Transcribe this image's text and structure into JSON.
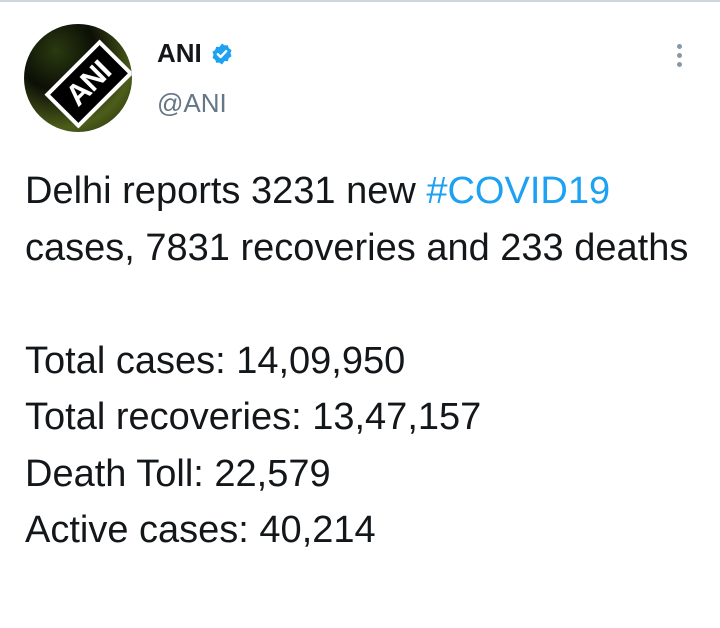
{
  "tweet": {
    "avatar_logo": "ANI",
    "name": "ANI",
    "verified": true,
    "handle": "@ANI",
    "colors": {
      "link": "#1da1f2",
      "verified": "#1da1f2",
      "handle": "#657786"
    },
    "text_intro": "Delhi reports 3231 new ",
    "hashtag": "#COVID19",
    "text_rest": " cases, 7831 recoveries and 233 deaths",
    "stats": [
      "Total cases: 14,09,950",
      "Total recoveries: 13,47,157",
      "Death Toll: 22,579",
      "Active cases: 40,214"
    ]
  }
}
